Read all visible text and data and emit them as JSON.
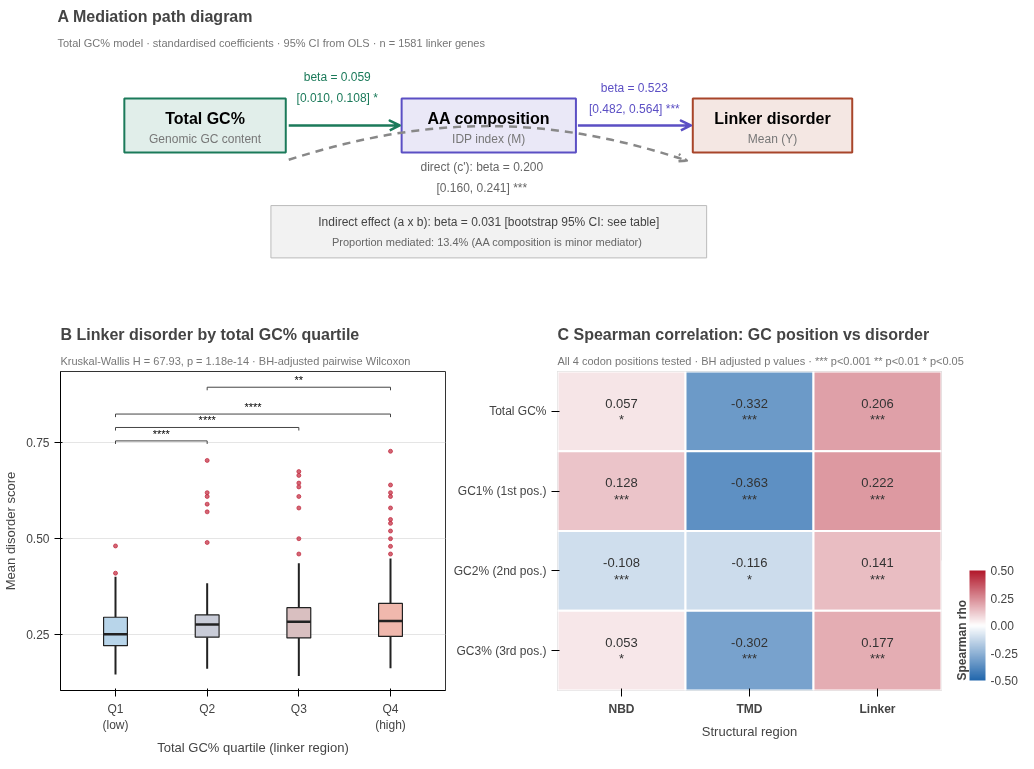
{
  "chart_data": [
    {
      "type": "other",
      "title": "A   Mediation path diagram",
      "subtitle": "Total GC% model · standardised coefficients · 95% CI from OLS · n = 1581 linker genes",
      "colors": [
        "#1b7a5a",
        "#5b4fc4",
        "#a8452a"
      ],
      "annotations": [
        "Total GC%",
        "Genomic GC content",
        "AA composition",
        "IDP index (M)",
        "Linker disorder",
        "Mean (Y)",
        "beta = 0.059\n[0.010, 0.108] *",
        "beta = 0.523\n[0.482, 0.564] ***",
        "direct (c'): beta = 0.200\n[0.160, 0.241] ***",
        "Indirect effect (a x b): beta = 0.031 [bootstrap 95% CI: see table]",
        "Proportion mediated: 13.4%  (AA composition is minor mediator)"
      ]
    },
    {
      "type": "box",
      "title": "B   Linker disorder by total GC% quartile",
      "subtitle": "Kruskal-Wallis H = 67.93, p = 1.18e-14 · BH-adjusted pairwise Wilcoxon",
      "xlabel": "Total GC% quartile (linker region)",
      "ylabel": "Mean disorder score",
      "categories": [
        "Q1\n(low)",
        "Q2",
        "Q3",
        "Q4\n(high)"
      ],
      "colors": [
        "#b8d5ea",
        "#c9ccd8",
        "#d9bfc0",
        "#f0b8ad"
      ],
      "color": "#c0253a",
      "boxes": [
        {
          "low": 0.146,
          "q1": 0.221,
          "median": 0.251,
          "q3": 0.295,
          "high": 0.401,
          "outliers": [
            0.481,
            0.41
          ]
        },
        {
          "low": 0.161,
          "q1": 0.243,
          "median": 0.276,
          "q3": 0.301,
          "high": 0.384,
          "outliers": [
            0.704,
            0.62,
            0.61,
            0.59,
            0.57,
            0.49
          ]
        },
        {
          "low": 0.142,
          "q1": 0.241,
          "median": 0.283,
          "q3": 0.32,
          "high": 0.436,
          "outliers": [
            0.675,
            0.665,
            0.645,
            0.635,
            0.61,
            0.58,
            0.5,
            0.46
          ]
        },
        {
          "low": 0.162,
          "q1": 0.245,
          "median": 0.285,
          "q3": 0.331,
          "high": 0.448,
          "outliers": [
            0.728,
            0.64,
            0.62,
            0.61,
            0.58,
            0.55,
            0.54,
            0.52,
            0.5,
            0.48,
            0.46
          ]
        }
      ],
      "annotations": [
        "****",
        "****",
        "****",
        "**"
      ],
      "ylim": [
        0.104,
        0.936
      ],
      "yticks": [
        {
          "value": 0.25,
          "label": "0.25"
        },
        {
          "value": 0.5,
          "label": "0.50"
        },
        {
          "value": 0.75,
          "label": "0.75"
        }
      ],
      "grid": "y"
    },
    {
      "type": "heatmap",
      "title": "C   Spearman correlation: GC position vs disorder",
      "subtitle": "All 4 codon positions tested · BH adjusted p values · *** p<0.001  ** p<0.01  * p<0.05",
      "xlabel": "Structural region",
      "clabel": "Spearman rho",
      "categories": [
        "NBD",
        "TMD",
        "Linker"
      ],
      "y_categories": [
        "Total GC%",
        "GC1% (1st pos.)",
        "GC2% (2nd pos.)",
        "GC3% (3rd pos.)"
      ],
      "cells": [
        [
          0.057,
          -0.332,
          0.206
        ],
        [
          0.128,
          -0.363,
          0.222
        ],
        [
          -0.108,
          -0.116,
          0.141
        ],
        [
          0.053,
          -0.302,
          0.177
        ]
      ],
      "cell_labels": [
        [
          "0.057\n*",
          "-0.332\n***",
          "0.206\n***"
        ],
        [
          "0.128\n***",
          "-0.363\n***",
          "0.222\n***"
        ],
        [
          "-0.108\n***",
          "-0.116\n*",
          "0.141\n***"
        ],
        [
          "0.053\n*",
          "-0.302\n***",
          "0.177\n***"
        ]
      ],
      "colors": [
        "#2166ac",
        "#ffffff",
        "#b2182b"
      ],
      "clim": [
        -0.5,
        0.5
      ],
      "cticks": [
        {
          "value": -0.5,
          "label": "-0.50"
        },
        {
          "value": -0.25,
          "label": "-0.25"
        },
        {
          "value": 0,
          "label": "0.00"
        },
        {
          "value": 0.25,
          "label": "0.25"
        },
        {
          "value": 0.5,
          "label": "0.50"
        }
      ],
      "grid": false
    }
  ]
}
